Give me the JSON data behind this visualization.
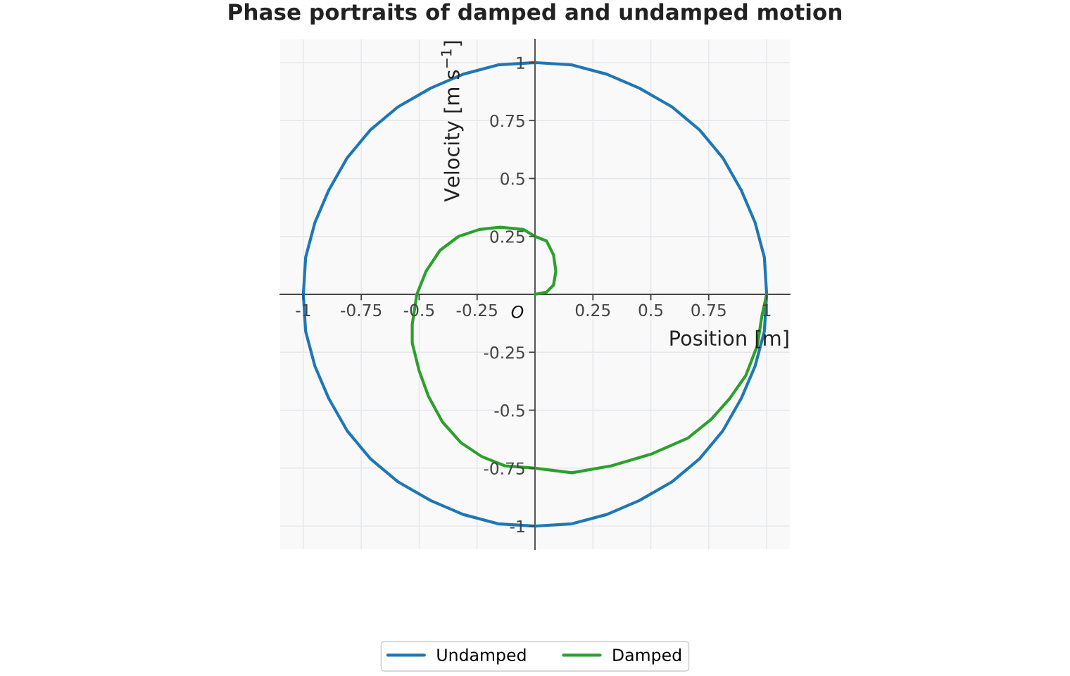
{
  "chart_data": {
    "type": "line",
    "title": "Phase portraits of damped and undamped motion",
    "xlabel": "Position [m]",
    "ylabel": "Velocity [m s$^{−1}$]",
    "xlim": [
      -1.1,
      1.1
    ],
    "ylim": [
      -1.1,
      1.1
    ],
    "xticks": [
      -1,
      -0.75,
      -0.5,
      -0.25,
      0.25,
      0.5,
      0.75,
      1
    ],
    "yticks": [
      -1,
      -0.75,
      -0.5,
      -0.25,
      0.25,
      0.5,
      0.75,
      1
    ],
    "grid": true,
    "legend": "bottom",
    "line_style": "solid",
    "annotations": [
      {
        "text": "O",
        "x": 0,
        "y": 0
      }
    ],
    "series": [
      {
        "name": "Undamped",
        "color": "#1f77b4",
        "x": [
          1,
          0.99,
          0.95,
          0.89,
          0.81,
          0.71,
          0.59,
          0.45,
          0.31,
          0.16,
          0,
          -0.16,
          -0.31,
          -0.45,
          -0.59,
          -0.71,
          -0.81,
          -0.89,
          -0.95,
          -0.99,
          -1,
          -0.99,
          -0.95,
          -0.89,
          -0.81,
          -0.71,
          -0.59,
          -0.45,
          -0.31,
          -0.16,
          0,
          0.16,
          0.31,
          0.45,
          0.59,
          0.71,
          0.81,
          0.89,
          0.95,
          0.99,
          1,
          0.99
        ],
        "values": [
          0,
          -0.16,
          -0.31,
          -0.45,
          -0.59,
          -0.71,
          -0.81,
          -0.89,
          -0.95,
          -0.99,
          -1,
          -0.99,
          -0.95,
          -0.89,
          -0.81,
          -0.71,
          -0.59,
          -0.45,
          -0.31,
          -0.16,
          0,
          0.16,
          0.31,
          0.45,
          0.59,
          0.71,
          0.81,
          0.89,
          0.95,
          0.99,
          1,
          0.99,
          0.95,
          0.89,
          0.81,
          0.71,
          0.59,
          0.45,
          0.31,
          0.16,
          0,
          -0.16
        ]
      },
      {
        "name": "Damped",
        "color": "#2ca02c",
        "x": [
          1,
          0.98,
          0.96,
          0.91,
          0.84,
          0.76,
          0.66,
          0.5,
          0.33,
          0.16,
          0,
          -0.13,
          -0.23,
          -0.32,
          -0.4,
          -0.46,
          -0.5,
          -0.53,
          -0.53,
          -0.51,
          -0.47,
          -0.41,
          -0.33,
          -0.24,
          -0.15,
          -0.05,
          0,
          0.05,
          0.08,
          0.09,
          0.08,
          0.05,
          0
        ],
        "values": [
          0,
          -0.09,
          -0.22,
          -0.35,
          -0.45,
          -0.54,
          -0.62,
          -0.69,
          -0.74,
          -0.77,
          -0.75,
          -0.74,
          -0.7,
          -0.64,
          -0.55,
          -0.44,
          -0.33,
          -0.21,
          -0.13,
          0,
          0.1,
          0.19,
          0.25,
          0.28,
          0.29,
          0.28,
          0.25,
          0.23,
          0.17,
          0.1,
          0.04,
          0.01,
          0
        ]
      }
    ]
  }
}
